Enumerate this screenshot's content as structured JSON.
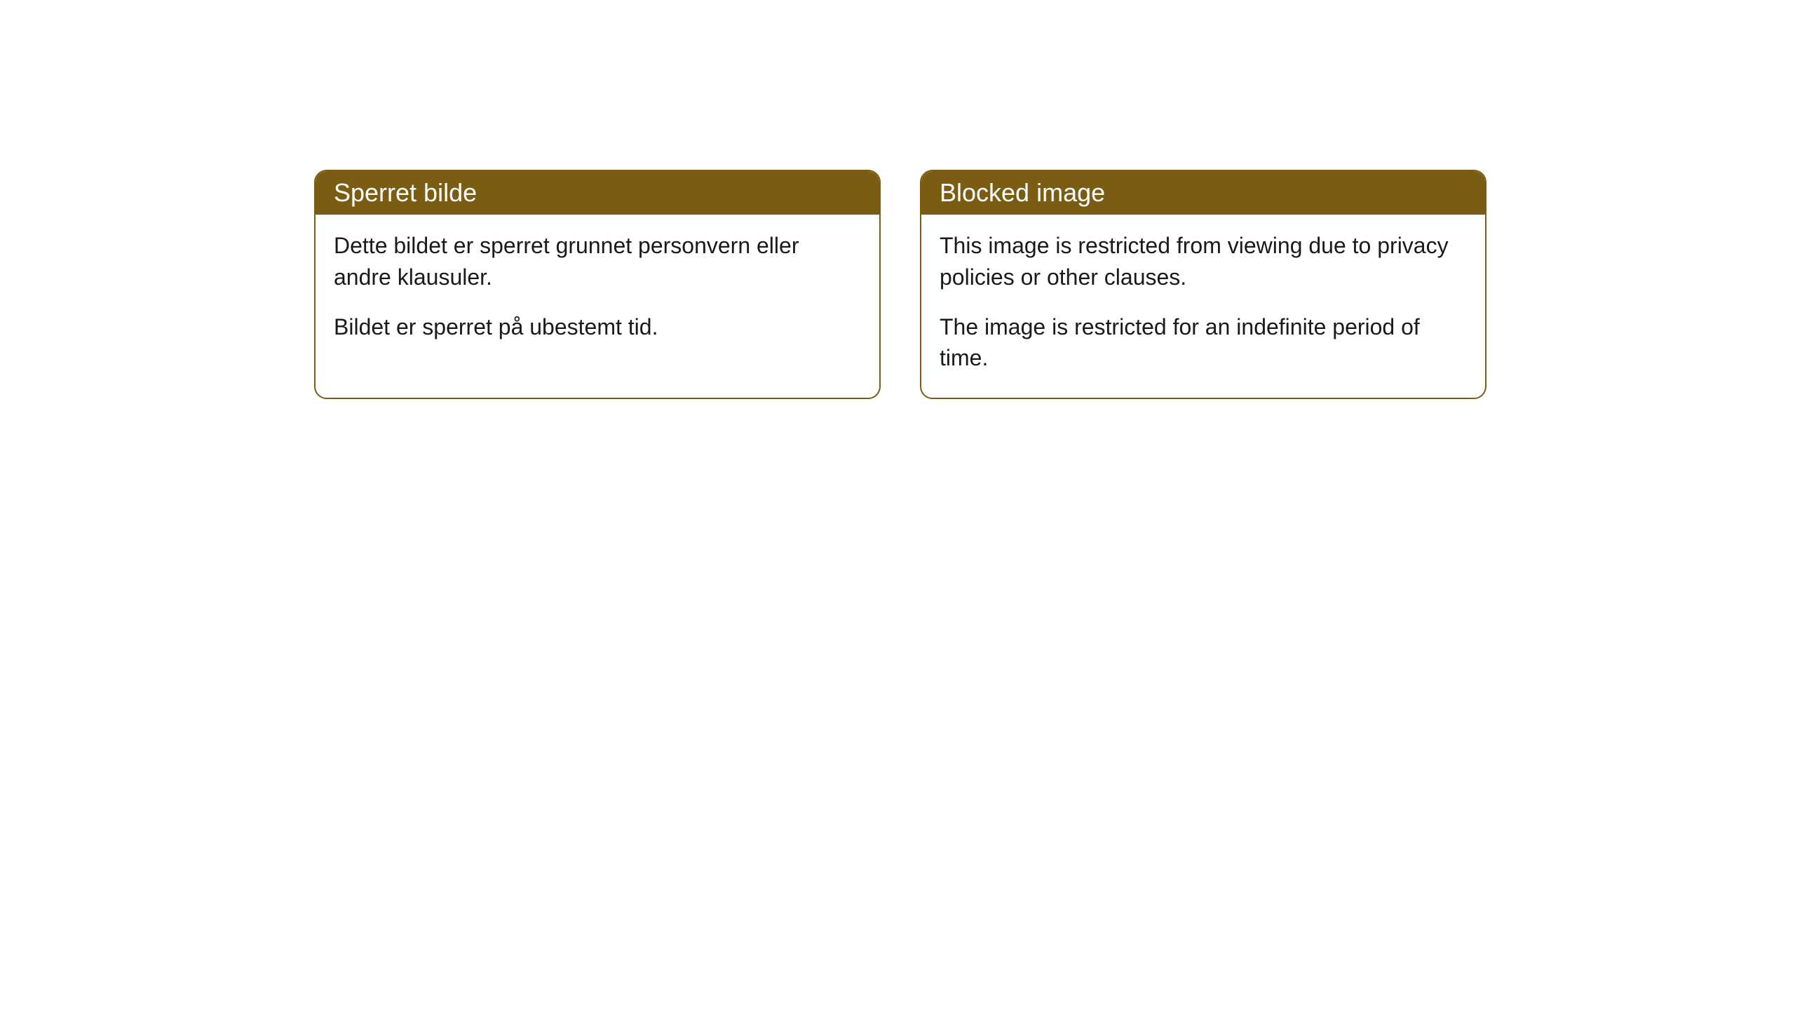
{
  "cards": {
    "left": {
      "title": "Sperret bilde",
      "paragraph1": "Dette bildet er sperret grunnet personvern eller andre klausuler.",
      "paragraph2": "Bildet er sperret på ubestemt tid."
    },
    "right": {
      "title": "Blocked image",
      "paragraph1": "This image is restricted from viewing due to privacy policies or other clauses.",
      "paragraph2": "The image is restricted for an indefinite period of time."
    }
  },
  "style": {
    "header_bg_color": "#7a5c13",
    "header_text_color": "#ffffff",
    "border_color": "#7a5c13",
    "body_bg_color": "#ffffff",
    "body_text_color": "#1a1a1a",
    "border_radius": 18,
    "title_fontsize": 36,
    "body_fontsize": 32
  }
}
